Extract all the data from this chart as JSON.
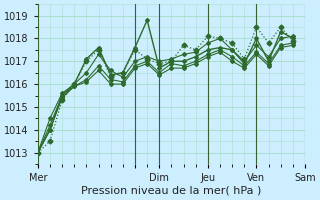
{
  "title": "",
  "xlabel": "Pression niveau de la mer( hPa )",
  "ylabel": "",
  "bg_color": "#cceeff",
  "grid_color": "#aaddcc",
  "line_color": "#2d6a2d",
  "ylim": [
    1012.5,
    1019.5
  ],
  "xlim": [
    0,
    22
  ],
  "day_ticks": [
    0,
    8,
    10,
    14,
    18,
    22
  ],
  "day_labels": [
    "Mer",
    "",
    "Dim",
    "Jeu",
    "Ven",
    "Sam"
  ],
  "series": [
    [
      1013.0,
      1013.5,
      1015.3,
      1016.0,
      1017.0,
      1017.5,
      1016.3,
      1016.5,
      1017.5,
      1017.1,
      1016.9,
      1017.0,
      1017.7,
      1017.5,
      1018.1,
      1018.0,
      1017.8,
      1017.1,
      1018.5,
      1017.8,
      1018.5,
      1017.9
    ],
    [
      1013.0,
      1014.0,
      1015.5,
      1016.0,
      1017.1,
      1017.6,
      1016.4,
      1016.5,
      1017.6,
      1018.8,
      1016.7,
      1017.0,
      1017.0,
      1017.2,
      1017.5,
      1017.6,
      1017.5,
      1016.9,
      1018.0,
      1017.0,
      1018.3,
      1018.0
    ],
    [
      1013.0,
      1014.5,
      1015.6,
      1016.0,
      1016.5,
      1017.3,
      1016.6,
      1016.3,
      1017.0,
      1017.2,
      1017.0,
      1017.1,
      1017.3,
      1017.4,
      1017.8,
      1018.0,
      1017.5,
      1017.0,
      1017.7,
      1017.2,
      1018.0,
      1018.1
    ],
    [
      1013.0,
      1014.0,
      1015.4,
      1015.9,
      1016.2,
      1016.8,
      1016.2,
      1016.1,
      1016.8,
      1017.0,
      1016.5,
      1016.9,
      1016.8,
      1017.0,
      1017.3,
      1017.5,
      1017.2,
      1016.8,
      1017.4,
      1016.9,
      1017.7,
      1017.8
    ],
    [
      1013.0,
      1014.2,
      1015.5,
      1015.9,
      1016.1,
      1016.6,
      1016.0,
      1016.0,
      1016.7,
      1016.9,
      1016.4,
      1016.7,
      1016.7,
      1016.9,
      1017.2,
      1017.4,
      1017.0,
      1016.7,
      1017.3,
      1016.8,
      1017.6,
      1017.7
    ]
  ],
  "dotted_series": [
    0
  ],
  "smooth_series": [
    1,
    2,
    3,
    4
  ]
}
